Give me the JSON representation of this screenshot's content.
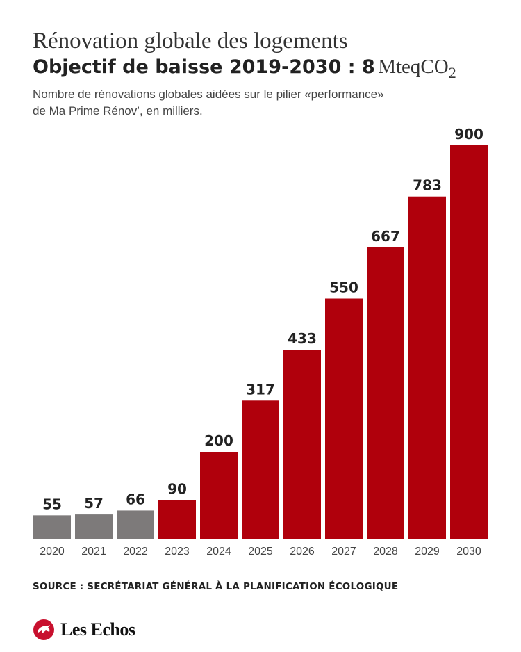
{
  "header": {
    "title": "Rénovation globale des logements",
    "subtitle_bold": "Objectif de baisse 2019-2030 : 8",
    "subtitle_unit": "MteqCO",
    "subtitle_unit_sub": "2",
    "description_line1": "Nombre de rénovations globales aidées sur le pilier «performance»",
    "description_line2": "de Ma Prime Rénov’, en milliers."
  },
  "chart_data": {
    "type": "bar",
    "categories": [
      "2020",
      "2021",
      "2022",
      "2023",
      "2024",
      "2025",
      "2026",
      "2027",
      "2028",
      "2029",
      "2030"
    ],
    "values": [
      55,
      57,
      66,
      90,
      200,
      317,
      433,
      550,
      667,
      783,
      900
    ],
    "series_type": [
      "actual",
      "actual",
      "actual",
      "target",
      "target",
      "target",
      "target",
      "target",
      "target",
      "target",
      "target"
    ],
    "colors": {
      "actual": "#7d7a7a",
      "target": "#b0000c"
    },
    "data_labels": true,
    "ylim": [
      0,
      900
    ],
    "grid": false,
    "legend": "none"
  },
  "footer": {
    "source": "SOURCE : SECRÉTARIAT GÉNÉRAL À LA PLANIFICATION ÉCOLOGIQUE",
    "brand": "Les Echos",
    "brand_color": "#c8102e"
  }
}
